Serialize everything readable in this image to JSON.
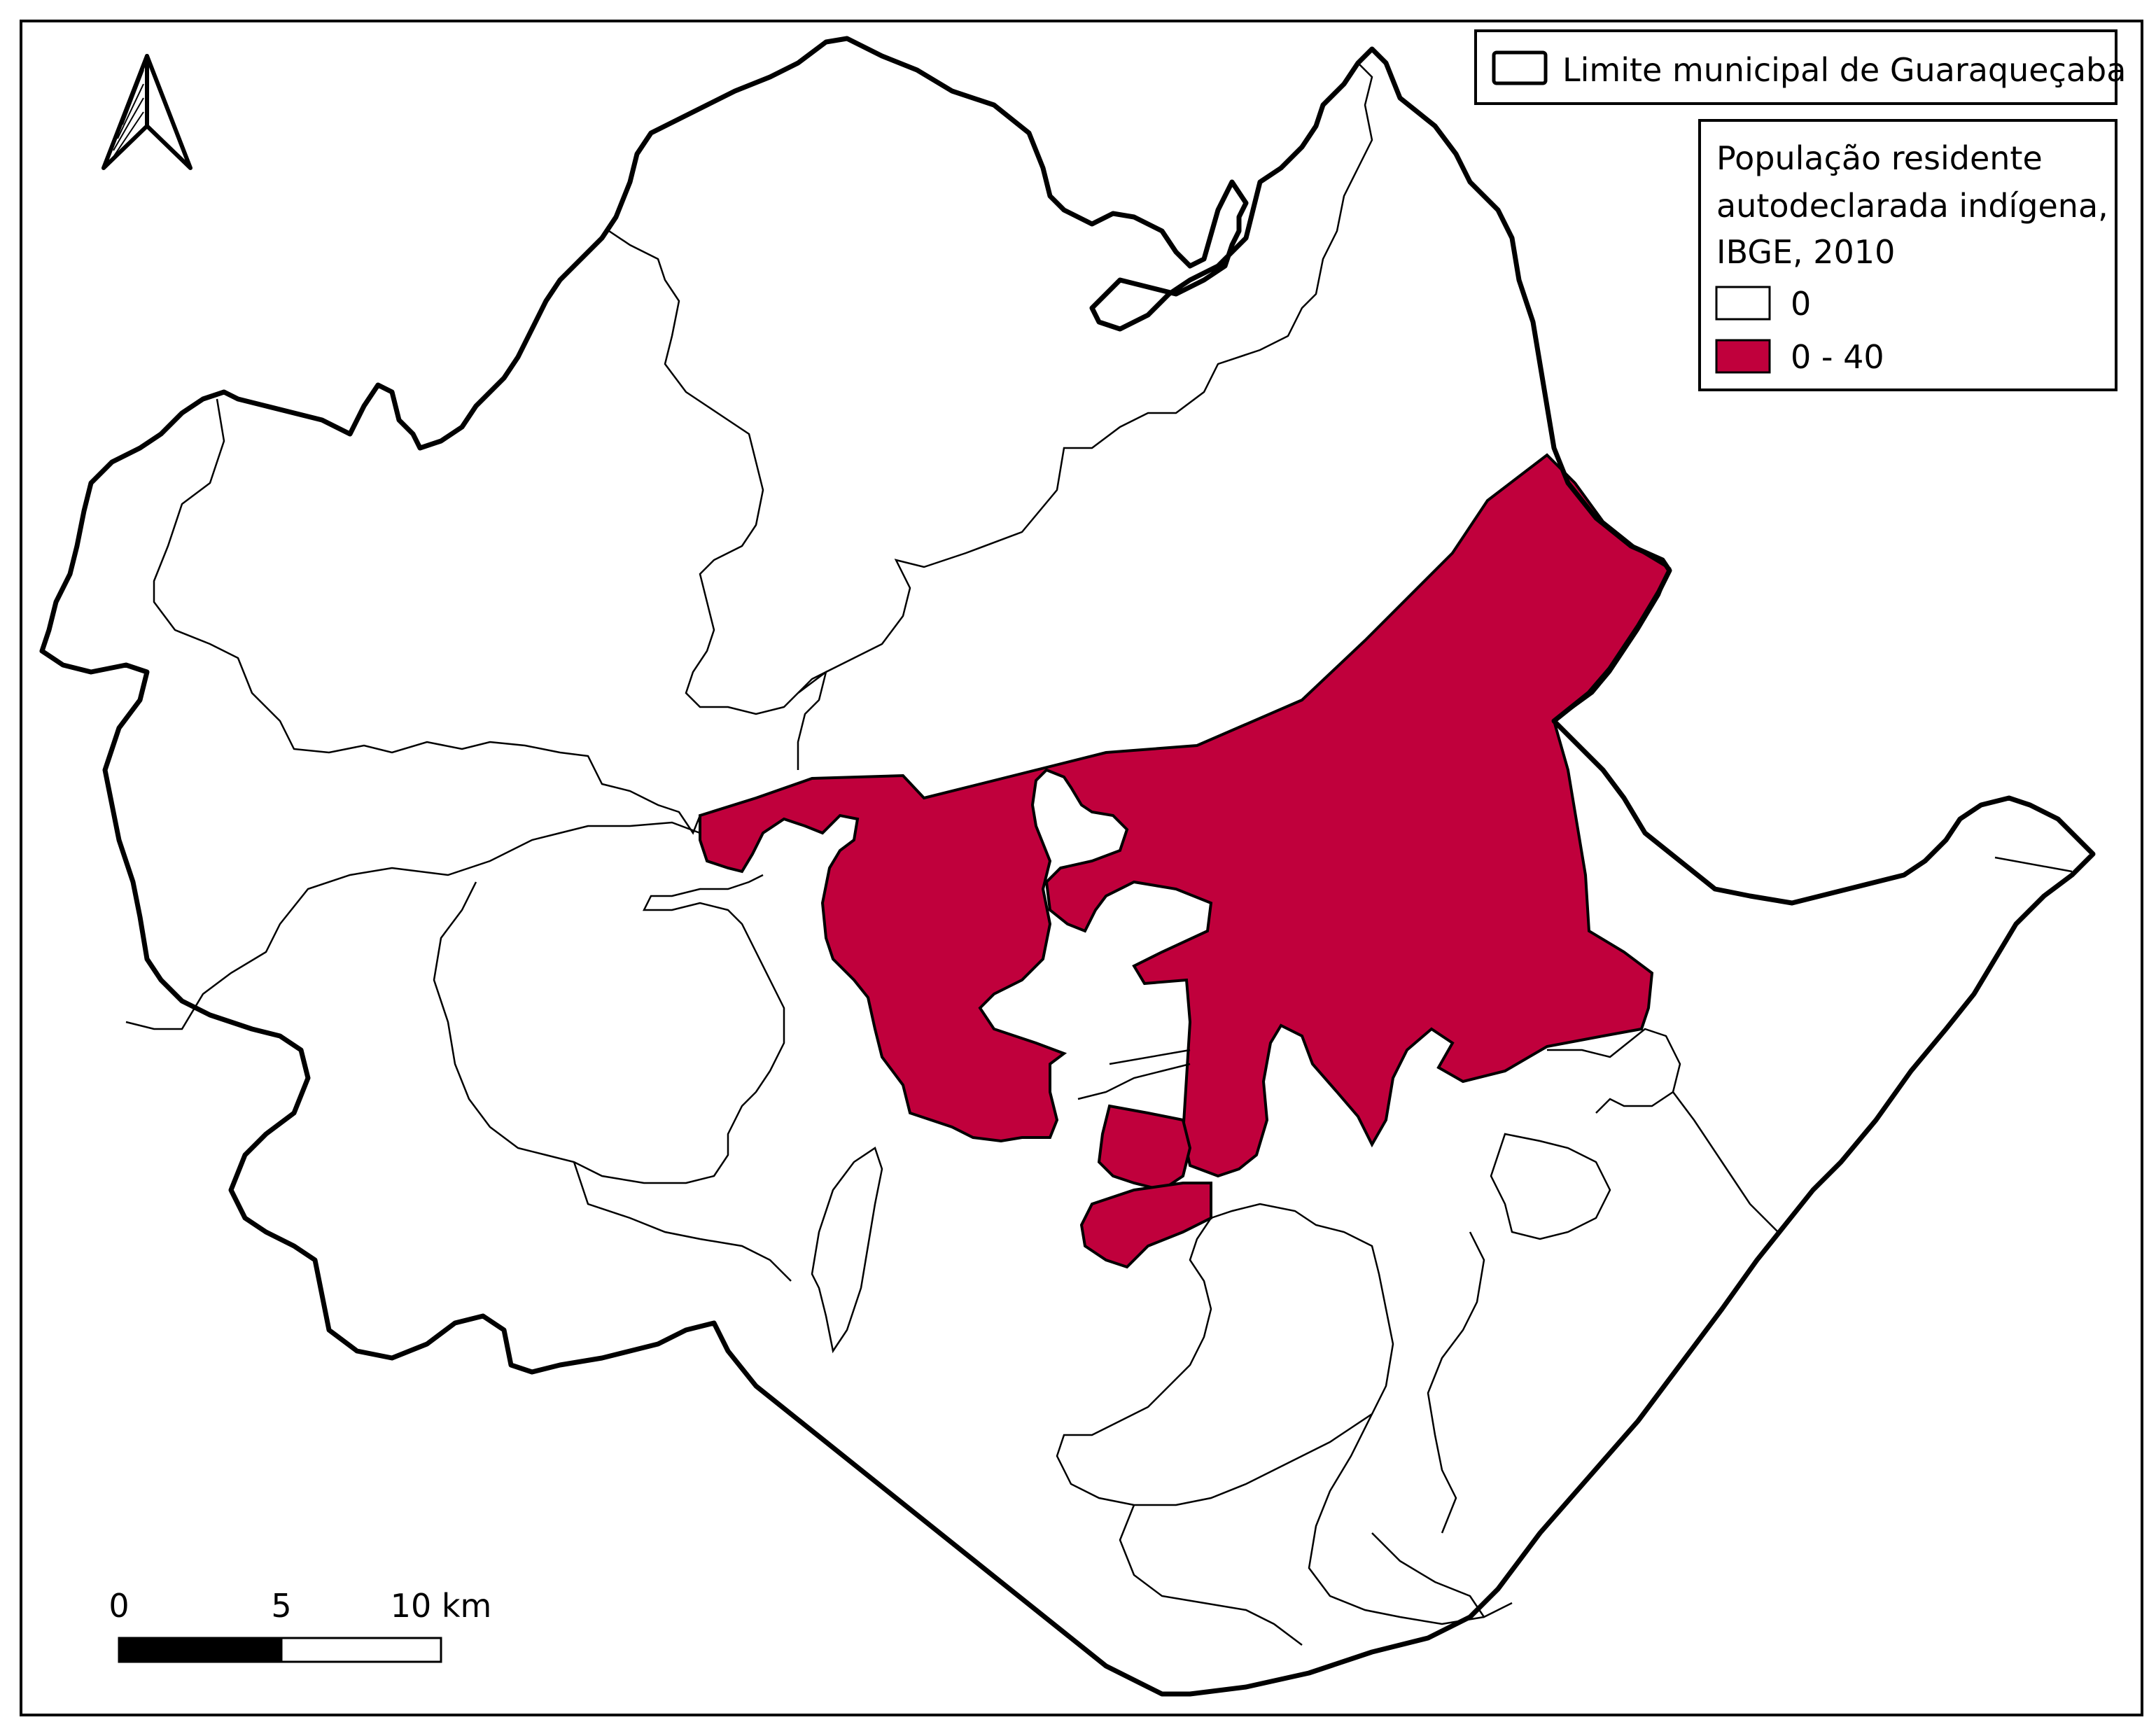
{
  "legend_boundary": {
    "label": "Limite municipal de Guaraqueçaba"
  },
  "legend_population": {
    "title_lines": [
      "População residente",
      "autodeclarada indígena,",
      "IBGE, 2010"
    ],
    "classes": [
      {
        "label": "0",
        "color": "#ffffff"
      },
      {
        "label": "0 - 40",
        "color": "#c0003c"
      }
    ]
  },
  "scale_bar": {
    "labels": [
      "0",
      "5",
      "10 km"
    ]
  },
  "north_arrow": {
    "icon": "north-arrow-icon"
  },
  "colors": {
    "highlight": "#c0003c",
    "outline": "#000000",
    "background": "#ffffff"
  }
}
